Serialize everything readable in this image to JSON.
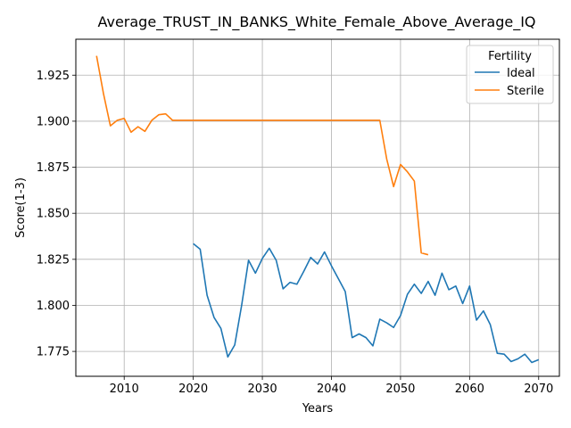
{
  "chart_data": {
    "type": "line",
    "title": "Average_TRUST_IN_BANKS_White_Female_Above_Average_IQ",
    "xlabel": "Years",
    "ylabel": "Score(1-3)",
    "xlim": [
      2003,
      2073
    ],
    "ylim": [
      1.7615,
      1.9445
    ],
    "xticks": [
      2010,
      2020,
      2030,
      2040,
      2050,
      2060,
      2070
    ],
    "yticks": [
      1.775,
      1.8,
      1.825,
      1.85,
      1.875,
      1.9,
      1.925
    ],
    "ytick_labels": [
      "1.775",
      "1.800",
      "1.825",
      "1.850",
      "1.875",
      "1.900",
      "1.925"
    ],
    "grid": true,
    "legend": {
      "title": "Fertility",
      "placement": "top-right"
    },
    "series": [
      {
        "name": "Ideal",
        "color": "#1f77b4",
        "x": [
          2020,
          2021,
          2022,
          2023,
          2024,
          2025,
          2026,
          2027,
          2028,
          2029,
          2030,
          2031,
          2032,
          2033,
          2034,
          2035,
          2036,
          2037,
          2038,
          2039,
          2040,
          2041,
          2042,
          2043,
          2044,
          2045,
          2046,
          2047,
          2048,
          2049,
          2050,
          2051,
          2052,
          2053,
          2054,
          2055,
          2056,
          2057,
          2058,
          2059,
          2060,
          2061,
          2062,
          2063,
          2064,
          2065,
          2066,
          2067,
          2068,
          2069,
          2070
        ],
        "values": [
          1.8335,
          1.8305,
          1.8055,
          1.7935,
          1.7875,
          1.772,
          1.7785,
          1.8,
          1.8245,
          1.8175,
          1.8255,
          1.831,
          1.8245,
          1.809,
          1.8125,
          1.8115,
          1.8185,
          1.826,
          1.8225,
          1.829,
          1.8215,
          1.8145,
          1.8075,
          1.7825,
          1.7845,
          1.7825,
          1.778,
          1.7925,
          1.7905,
          1.788,
          1.7945,
          1.806,
          1.8115,
          1.8065,
          1.813,
          1.8055,
          1.8175,
          1.8085,
          1.8105,
          1.801,
          1.8105,
          1.792,
          1.797,
          1.7895,
          1.774,
          1.7735,
          1.7695,
          1.771,
          1.7735,
          1.769,
          1.7705
        ]
      },
      {
        "name": "Sterile",
        "color": "#ff7f0e",
        "x": [
          2006,
          2007,
          2008,
          2009,
          2010,
          2011,
          2012,
          2013,
          2014,
          2015,
          2016,
          2017,
          2018,
          2019,
          2020,
          2021,
          2022,
          2023,
          2024,
          2025,
          2026,
          2027,
          2028,
          2029,
          2030,
          2031,
          2032,
          2033,
          2034,
          2035,
          2036,
          2037,
          2038,
          2039,
          2040,
          2041,
          2042,
          2043,
          2044,
          2045,
          2046,
          2047,
          2048,
          2049,
          2050,
          2051,
          2052,
          2053,
          2054
        ],
        "values": [
          1.9355,
          1.915,
          1.8975,
          1.9005,
          1.9015,
          1.894,
          1.897,
          1.8945,
          1.9005,
          1.9035,
          1.904,
          1.9005,
          1.9005,
          1.9005,
          1.9005,
          1.9005,
          1.9005,
          1.9005,
          1.9005,
          1.9005,
          1.9005,
          1.9005,
          1.9005,
          1.9005,
          1.9005,
          1.9005,
          1.9005,
          1.9005,
          1.9005,
          1.9005,
          1.9005,
          1.9005,
          1.9005,
          1.9005,
          1.9005,
          1.9005,
          1.9005,
          1.9005,
          1.9005,
          1.9005,
          1.9005,
          1.9005,
          1.8795,
          1.8645,
          1.8765,
          1.8725,
          1.8675,
          1.8285,
          1.8275
        ]
      }
    ]
  }
}
